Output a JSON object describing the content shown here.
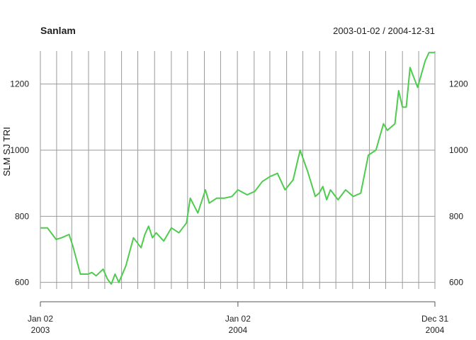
{
  "chart_data": {
    "type": "line",
    "title": "Sanlam",
    "date_range_label": "2003-01-02 / 2004-12-31",
    "ylabel": "SLM SJ TRI",
    "ylim": [
      580,
      1300
    ],
    "y_ticks": [
      600,
      800,
      1000,
      1200
    ],
    "x_range": [
      "2003-01-02",
      "2004-12-31"
    ],
    "x_ticks": [
      {
        "date": "2003-01-02",
        "label_line1": "Jan 02",
        "label_line2": "2003"
      },
      {
        "date": "2004-01-02",
        "label_line1": "Jan 02",
        "label_line2": "2004"
      },
      {
        "date": "2004-12-31",
        "label_line1": "Dec 31",
        "label_line2": "2004"
      }
    ],
    "grid": "on",
    "line_color": "#4dcc4d",
    "series": [
      {
        "x": [
          "2003-01-02",
          "2003-01-15",
          "2003-01-31",
          "2003-02-10",
          "2003-02-24",
          "2003-03-03",
          "2003-03-17",
          "2003-03-31",
          "2003-04-07",
          "2003-04-15",
          "2003-04-28",
          "2003-05-06",
          "2003-05-13",
          "2003-05-20",
          "2003-05-27",
          "2003-06-09",
          "2003-06-23",
          "2003-07-07",
          "2003-07-14",
          "2003-07-21",
          "2003-07-28",
          "2003-08-04",
          "2003-08-18",
          "2003-09-01",
          "2003-09-15",
          "2003-09-29",
          "2003-10-06",
          "2003-10-20",
          "2003-11-03",
          "2003-11-10",
          "2003-11-24",
          "2003-12-08",
          "2003-12-22",
          "2004-01-02",
          "2004-01-19",
          "2004-02-02",
          "2004-02-16",
          "2004-03-01",
          "2004-03-15",
          "2004-03-29",
          "2004-04-13",
          "2004-04-26",
          "2004-05-10",
          "2004-05-24",
          "2004-05-31",
          "2004-06-07",
          "2004-06-14",
          "2004-06-21",
          "2004-07-05",
          "2004-07-19",
          "2004-08-02",
          "2004-08-16",
          "2004-08-30",
          "2004-09-13",
          "2004-09-27",
          "2004-10-04",
          "2004-10-18",
          "2004-10-25",
          "2004-11-01",
          "2004-11-08",
          "2004-11-15",
          "2004-11-22",
          "2004-11-29",
          "2004-12-06",
          "2004-12-13",
          "2004-12-20",
          "2004-12-31"
        ],
        "values": [
          765,
          765,
          730,
          735,
          745,
          710,
          625,
          625,
          630,
          620,
          640,
          610,
          595,
          625,
          600,
          650,
          735,
          705,
          745,
          770,
          735,
          750,
          725,
          765,
          750,
          780,
          855,
          810,
          880,
          840,
          855,
          855,
          860,
          880,
          865,
          875,
          905,
          920,
          930,
          880,
          910,
          1000,
          935,
          860,
          870,
          890,
          850,
          880,
          850,
          880,
          860,
          870,
          985,
          1000,
          1080,
          1060,
          1080,
          1180,
          1130,
          1130,
          1250,
          1220,
          1190,
          1230,
          1270,
          1295,
          1295
        ]
      }
    ]
  }
}
